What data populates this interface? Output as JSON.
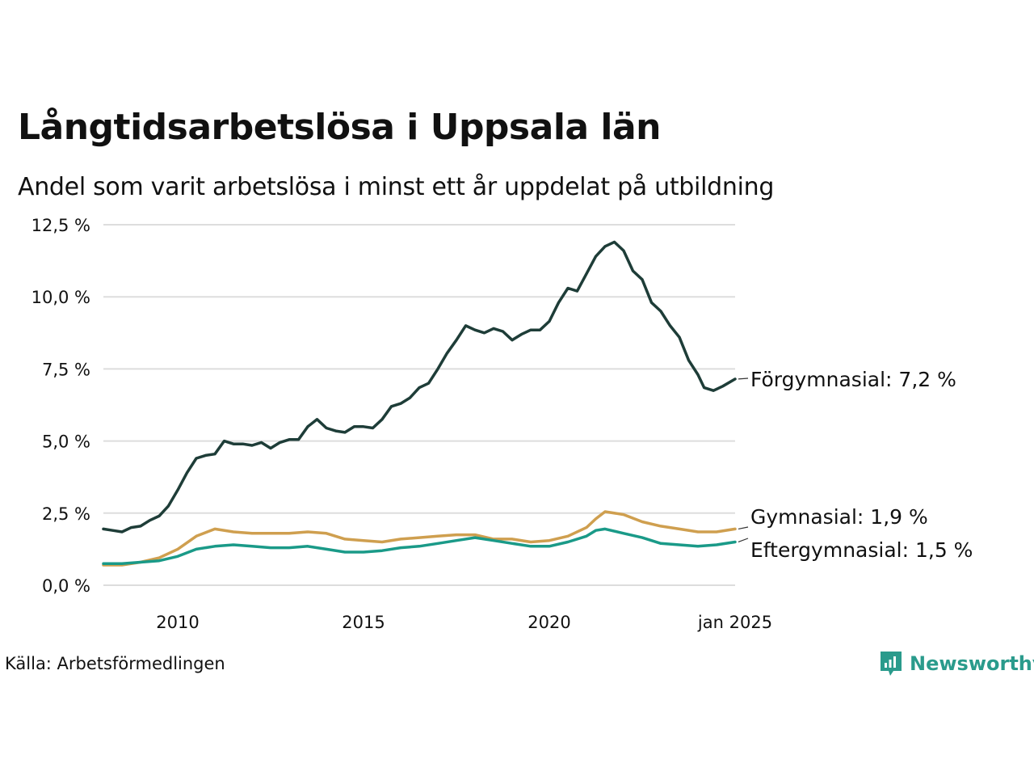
{
  "title": "Långtidsarbetslösa i Uppsala län",
  "subtitle": "Andel som varit arbetslösa i minst ett år uppdelat på utbildning",
  "source": "Källa: Arbetsförmedlingen",
  "brand": "Newsworthy",
  "colors": {
    "forgymnasial": "#1e3d38",
    "gymnasial": "#cf9f4f",
    "eftergymnasial": "#1a9a88",
    "grid": "#dddddd",
    "brand": "#2a9b8c"
  },
  "chart_data": {
    "type": "line",
    "ylim": [
      0,
      12.5
    ],
    "y_ticks": [
      {
        "value": 0,
        "label": "0,0 %"
      },
      {
        "value": 2.5,
        "label": "2,5 %"
      },
      {
        "value": 5,
        "label": "5,0 %"
      },
      {
        "value": 7.5,
        "label": "7,5 %"
      },
      {
        "value": 10,
        "label": "10,0 %"
      },
      {
        "value": 12.5,
        "label": "12,5 %"
      }
    ],
    "x_range": [
      "2008-01",
      "2025-01"
    ],
    "x_ticks": [
      {
        "value": "2010-01",
        "label": "2010"
      },
      {
        "value": "2015-01",
        "label": "2015"
      },
      {
        "value": "2020-01",
        "label": "2020"
      },
      {
        "value": "2025-01",
        "label": "jan 2025"
      }
    ],
    "grid": true,
    "series": [
      {
        "name": "Förgymnasial",
        "end_label": "Förgymnasial: 7,2 %",
        "color": "#1e3d38",
        "points": [
          [
            "2008-01",
            1.95
          ],
          [
            "2008-04",
            1.9
          ],
          [
            "2008-07",
            1.85
          ],
          [
            "2008-10",
            2.0
          ],
          [
            "2009-01",
            2.05
          ],
          [
            "2009-04",
            2.25
          ],
          [
            "2009-07",
            2.4
          ],
          [
            "2009-10",
            2.75
          ],
          [
            "2010-01",
            3.3
          ],
          [
            "2010-04",
            3.9
          ],
          [
            "2010-07",
            4.4
          ],
          [
            "2010-10",
            4.5
          ],
          [
            "2011-01",
            4.55
          ],
          [
            "2011-04",
            5.0
          ],
          [
            "2011-07",
            4.9
          ],
          [
            "2011-10",
            4.9
          ],
          [
            "2012-01",
            4.85
          ],
          [
            "2012-04",
            4.95
          ],
          [
            "2012-07",
            4.75
          ],
          [
            "2012-10",
            4.95
          ],
          [
            "2013-01",
            5.05
          ],
          [
            "2013-04",
            5.05
          ],
          [
            "2013-07",
            5.5
          ],
          [
            "2013-10",
            5.75
          ],
          [
            "2014-01",
            5.45
          ],
          [
            "2014-04",
            5.35
          ],
          [
            "2014-07",
            5.3
          ],
          [
            "2014-10",
            5.5
          ],
          [
            "2015-01",
            5.5
          ],
          [
            "2015-04",
            5.45
          ],
          [
            "2015-07",
            5.75
          ],
          [
            "2015-10",
            6.2
          ],
          [
            "2016-01",
            6.3
          ],
          [
            "2016-04",
            6.5
          ],
          [
            "2016-07",
            6.85
          ],
          [
            "2016-10",
            7.0
          ],
          [
            "2017-01",
            7.5
          ],
          [
            "2017-04",
            8.05
          ],
          [
            "2017-07",
            8.5
          ],
          [
            "2017-10",
            9.0
          ],
          [
            "2018-01",
            8.85
          ],
          [
            "2018-04",
            8.75
          ],
          [
            "2018-07",
            8.9
          ],
          [
            "2018-10",
            8.8
          ],
          [
            "2019-01",
            8.5
          ],
          [
            "2019-04",
            8.7
          ],
          [
            "2019-07",
            8.85
          ],
          [
            "2019-10",
            8.85
          ],
          [
            "2020-01",
            9.15
          ],
          [
            "2020-04",
            9.8
          ],
          [
            "2020-07",
            10.3
          ],
          [
            "2020-10",
            10.2
          ],
          [
            "2021-01",
            10.8
          ],
          [
            "2021-04",
            11.4
          ],
          [
            "2021-07",
            11.75
          ],
          [
            "2021-10",
            11.9
          ],
          [
            "2022-01",
            11.6
          ],
          [
            "2022-04",
            10.9
          ],
          [
            "2022-07",
            10.6
          ],
          [
            "2022-10",
            9.8
          ],
          [
            "2023-01",
            9.5
          ],
          [
            "2023-04",
            9.0
          ],
          [
            "2023-07",
            8.6
          ],
          [
            "2023-10",
            7.8
          ],
          [
            "2024-01",
            7.3
          ],
          [
            "2024-03",
            6.85
          ],
          [
            "2024-06",
            6.75
          ],
          [
            "2024-09",
            6.9
          ],
          [
            "2025-01",
            7.15
          ]
        ]
      },
      {
        "name": "Gymnasial",
        "end_label": "Gymnasial: 1,9 %",
        "color": "#cf9f4f",
        "points": [
          [
            "2008-01",
            0.7
          ],
          [
            "2008-07",
            0.7
          ],
          [
            "2009-01",
            0.8
          ],
          [
            "2009-07",
            0.95
          ],
          [
            "2010-01",
            1.25
          ],
          [
            "2010-07",
            1.7
          ],
          [
            "2011-01",
            1.95
          ],
          [
            "2011-07",
            1.85
          ],
          [
            "2012-01",
            1.8
          ],
          [
            "2012-07",
            1.8
          ],
          [
            "2013-01",
            1.8
          ],
          [
            "2013-07",
            1.85
          ],
          [
            "2014-01",
            1.8
          ],
          [
            "2014-07",
            1.6
          ],
          [
            "2015-01",
            1.55
          ],
          [
            "2015-07",
            1.5
          ],
          [
            "2016-01",
            1.6
          ],
          [
            "2016-07",
            1.65
          ],
          [
            "2017-01",
            1.7
          ],
          [
            "2017-07",
            1.75
          ],
          [
            "2018-01",
            1.75
          ],
          [
            "2018-07",
            1.6
          ],
          [
            "2019-01",
            1.6
          ],
          [
            "2019-07",
            1.5
          ],
          [
            "2020-01",
            1.55
          ],
          [
            "2020-07",
            1.7
          ],
          [
            "2021-01",
            2.0
          ],
          [
            "2021-04",
            2.3
          ],
          [
            "2021-07",
            2.55
          ],
          [
            "2022-01",
            2.45
          ],
          [
            "2022-07",
            2.2
          ],
          [
            "2023-01",
            2.05
          ],
          [
            "2023-07",
            1.95
          ],
          [
            "2024-01",
            1.85
          ],
          [
            "2024-07",
            1.85
          ],
          [
            "2025-01",
            1.95
          ]
        ]
      },
      {
        "name": "Eftergymnasial",
        "end_label": "Eftergymnasial: 1,5 %",
        "color": "#1a9a88",
        "points": [
          [
            "2008-01",
            0.75
          ],
          [
            "2008-07",
            0.75
          ],
          [
            "2009-01",
            0.8
          ],
          [
            "2009-07",
            0.85
          ],
          [
            "2010-01",
            1.0
          ],
          [
            "2010-07",
            1.25
          ],
          [
            "2011-01",
            1.35
          ],
          [
            "2011-07",
            1.4
          ],
          [
            "2012-01",
            1.35
          ],
          [
            "2012-07",
            1.3
          ],
          [
            "2013-01",
            1.3
          ],
          [
            "2013-07",
            1.35
          ],
          [
            "2014-01",
            1.25
          ],
          [
            "2014-07",
            1.15
          ],
          [
            "2015-01",
            1.15
          ],
          [
            "2015-07",
            1.2
          ],
          [
            "2016-01",
            1.3
          ],
          [
            "2016-07",
            1.35
          ],
          [
            "2017-01",
            1.45
          ],
          [
            "2017-07",
            1.55
          ],
          [
            "2018-01",
            1.65
          ],
          [
            "2018-07",
            1.55
          ],
          [
            "2019-01",
            1.45
          ],
          [
            "2019-07",
            1.35
          ],
          [
            "2020-01",
            1.35
          ],
          [
            "2020-07",
            1.5
          ],
          [
            "2021-01",
            1.7
          ],
          [
            "2021-04",
            1.9
          ],
          [
            "2021-07",
            1.95
          ],
          [
            "2022-01",
            1.8
          ],
          [
            "2022-07",
            1.65
          ],
          [
            "2023-01",
            1.45
          ],
          [
            "2023-07",
            1.4
          ],
          [
            "2024-01",
            1.35
          ],
          [
            "2024-07",
            1.4
          ],
          [
            "2025-01",
            1.5
          ]
        ]
      }
    ]
  }
}
